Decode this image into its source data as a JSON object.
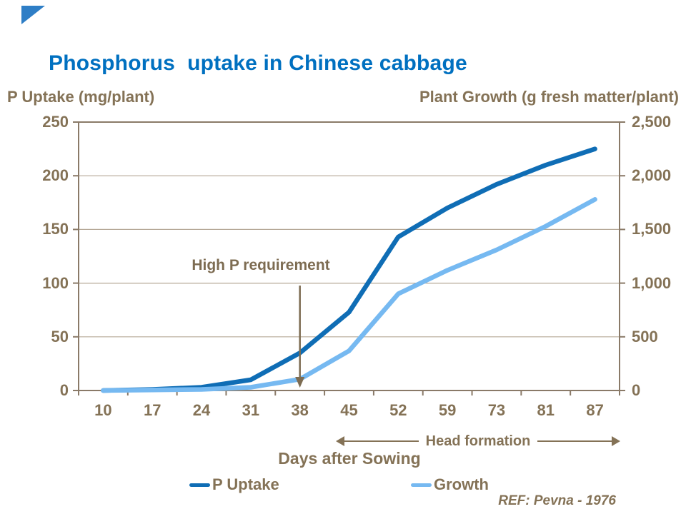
{
  "slide": {
    "title": "Phosphorus  uptake in Chinese cabbage",
    "title_color": "#0070C0",
    "corner_triangle_color": "#2E7EC6"
  },
  "chart_data": {
    "type": "line",
    "title": "Phosphorus uptake in Chinese cabbage",
    "categories": [
      "10",
      "17",
      "24",
      "31",
      "38",
      "45",
      "52",
      "59",
      "73",
      "81",
      "87"
    ],
    "xlabel": "Days after Sowing",
    "grid": true,
    "left_axis": {
      "label": "P Uptake (mg/plant)",
      "ticks": [
        "250",
        "200",
        "150",
        "100",
        "50",
        "0"
      ],
      "range": [
        0,
        250
      ]
    },
    "right_axis": {
      "label": "Plant Growth (g fresh matter/plant)",
      "ticks": [
        "2,500",
        "2,000",
        "1,500",
        "1,000",
        "500",
        "0"
      ],
      "range": [
        0,
        2500
      ]
    },
    "series": [
      {
        "name": "P Uptake",
        "axis": "left",
        "color": "#0F6DB5",
        "values": [
          0,
          1,
          3,
          10,
          35,
          73,
          143,
          170,
          192,
          210,
          225
        ]
      },
      {
        "name": "Growth",
        "axis": "right",
        "color": "#76B9F1",
        "values": [
          0,
          5,
          10,
          30,
          105,
          370,
          900,
          1120,
          1310,
          1530,
          1780
        ]
      }
    ],
    "annotations": {
      "high_p": {
        "text": "High P requirement",
        "day": "38"
      },
      "head_formation": {
        "text": "Head formation",
        "from_day": "45",
        "to_day": "87"
      }
    },
    "legend": {
      "position": "bottom",
      "entries": [
        "P Uptake",
        "Growth"
      ]
    },
    "reference": "REF: Pevna - 1976",
    "colors": {
      "axis": "#8A7A68",
      "grid": "#B5A896",
      "text": "#847256",
      "arrow": "#7D6C52"
    }
  }
}
